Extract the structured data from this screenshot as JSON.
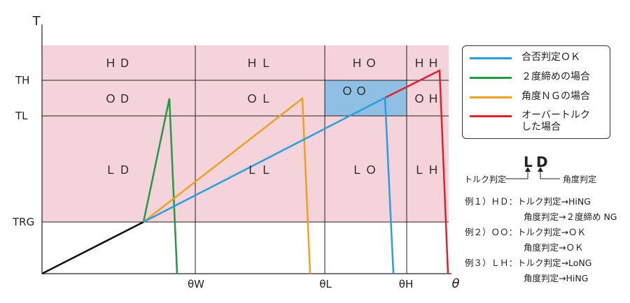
{
  "axes": {
    "y_title": "T",
    "x_title": "θ",
    "y_ticks": [
      "TH",
      "TL",
      "TRG"
    ],
    "x_ticks": [
      "θW",
      "θL",
      "θH"
    ]
  },
  "zones": {
    "HD": "ＨＤ",
    "HL": "ＨＬ",
    "HO": "ＨＯ",
    "HH": "ＨＨ",
    "OD": "ＯＤ",
    "OL": "ＯＬ",
    "OO": "ＯＯ",
    "OH": "ＯＨ",
    "LD": "ＬＤ",
    "LL": "ＬＬ",
    "LO": "ＬＯ",
    "LH": "ＬＨ"
  },
  "legend": [
    {
      "label": "合否判定ＯＫ",
      "color": "#2a9de0"
    },
    {
      "label": "２度締めの場合",
      "color": "#1f9a45"
    },
    {
      "label": "角度ＮＧの場合",
      "color": "#f0a020"
    },
    {
      "label": "オーバートルク\nした場合",
      "color": "#e0202c"
    }
  ],
  "explain": {
    "first_letter": "L",
    "second_letter": "D",
    "first_meaning": "トルク判定",
    "second_meaning": "角度判定"
  },
  "examples": [
    {
      "prefix": "例１）ＨＤ：",
      "line1": "トルク判定→HiNG",
      "line2": "角度判定→２度締め NG"
    },
    {
      "prefix": "例２）ＯＯ：",
      "line1": "トルク判定→ＯＫ",
      "line2": "角度判定→ＯＫ"
    },
    {
      "prefix": "例３）ＬＨ：",
      "line1": "トルク判定→LoNG",
      "line2": "角度判定→HiNG"
    }
  ],
  "colors": {
    "zone_fill": "#f4d3da",
    "ok_fill": "#8fbfe2",
    "ok_line": "#2a9de0",
    "retighten_line": "#1f9a45",
    "angle_ng_line": "#f0a020",
    "over_torque_line": "#e0202c",
    "base_line": "#111111"
  }
}
